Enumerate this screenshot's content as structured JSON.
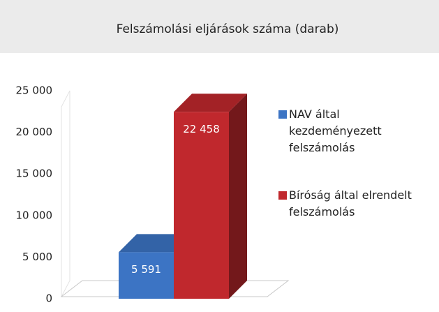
{
  "chart_data": {
    "type": "bar3d",
    "title": "Felszámolási eljárások száma (darab)",
    "categories": [
      null
    ],
    "series": [
      {
        "name": "NAV által kezdeményezett felszámolás",
        "color": "#3c74c4",
        "values": [
          5591
        ],
        "value_labels": [
          "5 591"
        ]
      },
      {
        "name": "Bíróság által elrendelt felszámolás",
        "color": "#c0282d",
        "values": [
          22458
        ],
        "value_labels": [
          "22 458"
        ]
      }
    ],
    "ylim": [
      0,
      25000
    ],
    "yticks": [
      {
        "value": 0,
        "label": "0"
      },
      {
        "value": 5000,
        "label": "5 000"
      },
      {
        "value": 10000,
        "label": "10 000"
      },
      {
        "value": 15000,
        "label": "15 000"
      },
      {
        "value": 20000,
        "label": "20 000"
      },
      {
        "value": 25000,
        "label": "25 000"
      }
    ],
    "legend": "right",
    "grid": false
  }
}
